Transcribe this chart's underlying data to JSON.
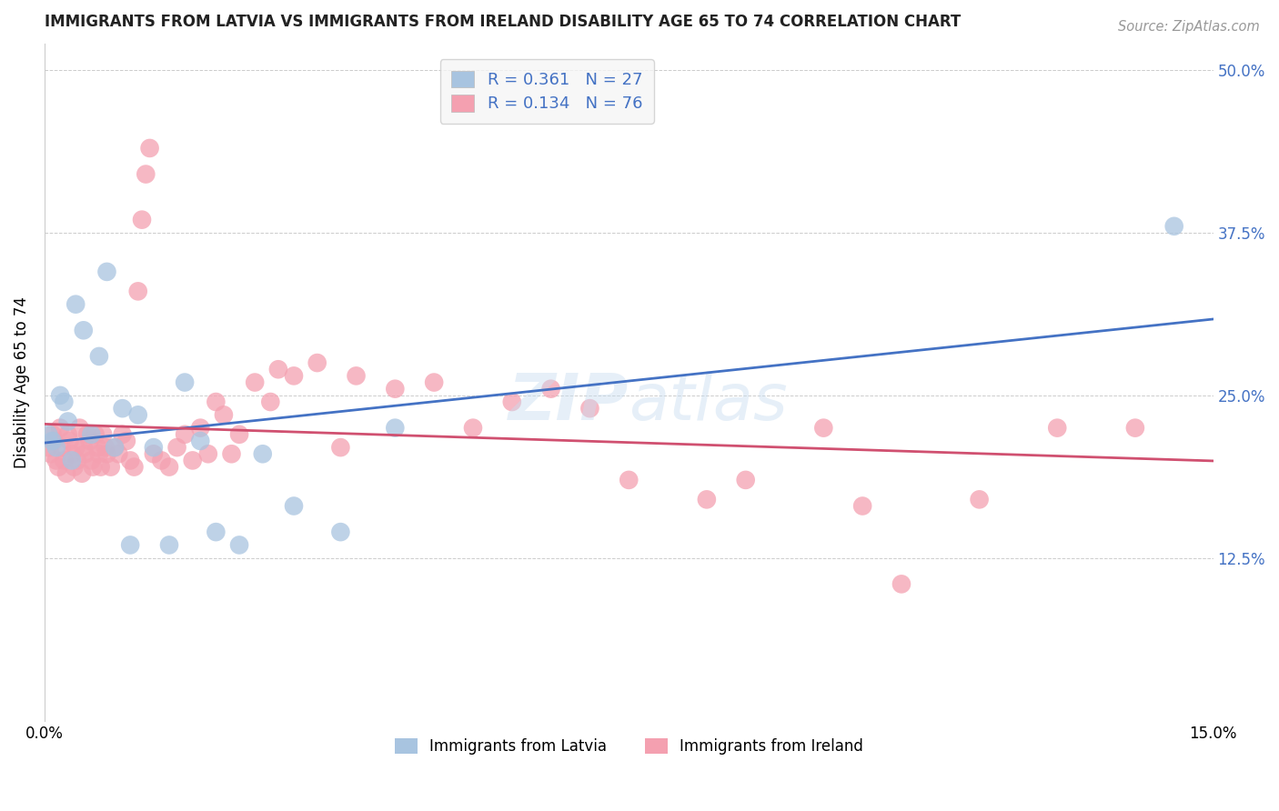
{
  "title": "IMMIGRANTS FROM LATVIA VS IMMIGRANTS FROM IRELAND DISABILITY AGE 65 TO 74 CORRELATION CHART",
  "source": "Source: ZipAtlas.com",
  "ylabel": "Disability Age 65 to 74",
  "xlim": [
    0.0,
    15.0
  ],
  "ylim": [
    0.0,
    52.0
  ],
  "legend_labels": [
    "Immigrants from Latvia",
    "Immigrants from Ireland"
  ],
  "legend_r_latvia": "0.361",
  "legend_n_latvia": "27",
  "legend_r_ireland": "0.134",
  "legend_n_ireland": "76",
  "color_latvia": "#a8c4e0",
  "color_ireland": "#f4a0b0",
  "line_color_latvia": "#4472c4",
  "line_color_ireland": "#d05070",
  "background_color": "#ffffff",
  "grid_color": "#cccccc",
  "title_color": "#222222",
  "source_color": "#999999",
  "yticks": [
    12.5,
    25.0,
    37.5,
    50.0
  ],
  "xticks": [
    0.0,
    15.0
  ],
  "latvia_x": [
    0.05,
    0.1,
    0.15,
    0.2,
    0.25,
    0.3,
    0.35,
    0.4,
    0.5,
    0.6,
    0.7,
    0.8,
    0.9,
    1.0,
    1.1,
    1.2,
    1.4,
    1.6,
    1.8,
    2.0,
    2.2,
    2.5,
    2.8,
    3.2,
    3.8,
    4.5,
    14.5
  ],
  "latvia_y": [
    22.0,
    21.5,
    21.0,
    25.0,
    24.5,
    23.0,
    20.0,
    32.0,
    30.0,
    22.0,
    28.0,
    34.5,
    21.0,
    24.0,
    13.5,
    23.5,
    21.0,
    13.5,
    26.0,
    21.5,
    14.5,
    13.5,
    20.5,
    16.5,
    14.5,
    22.5,
    38.0
  ],
  "ireland_x": [
    0.05,
    0.08,
    0.1,
    0.12,
    0.15,
    0.18,
    0.2,
    0.22,
    0.25,
    0.28,
    0.3,
    0.32,
    0.35,
    0.38,
    0.4,
    0.42,
    0.45,
    0.48,
    0.5,
    0.52,
    0.55,
    0.58,
    0.6,
    0.62,
    0.65,
    0.68,
    0.7,
    0.72,
    0.75,
    0.78,
    0.8,
    0.85,
    0.9,
    0.95,
    1.0,
    1.05,
    1.1,
    1.15,
    1.2,
    1.25,
    1.3,
    1.35,
    1.4,
    1.5,
    1.6,
    1.7,
    1.8,
    1.9,
    2.0,
    2.1,
    2.2,
    2.3,
    2.4,
    2.5,
    2.7,
    2.9,
    3.0,
    3.2,
    3.5,
    3.8,
    4.0,
    4.5,
    5.0,
    5.5,
    6.0,
    6.5,
    7.0,
    7.5,
    8.5,
    9.0,
    10.0,
    10.5,
    11.0,
    12.0,
    13.0,
    14.0
  ],
  "ireland_y": [
    21.0,
    20.5,
    22.0,
    21.5,
    20.0,
    19.5,
    22.5,
    21.0,
    20.0,
    19.0,
    22.0,
    21.5,
    20.5,
    19.5,
    21.0,
    20.0,
    22.5,
    19.0,
    21.0,
    20.5,
    22.0,
    21.5,
    20.0,
    19.5,
    22.0,
    21.0,
    20.5,
    19.5,
    22.0,
    21.0,
    20.5,
    19.5,
    21.0,
    20.5,
    22.0,
    21.5,
    20.0,
    19.5,
    33.0,
    38.5,
    42.0,
    44.0,
    20.5,
    20.0,
    19.5,
    21.0,
    22.0,
    20.0,
    22.5,
    20.5,
    24.5,
    23.5,
    20.5,
    22.0,
    26.0,
    24.5,
    27.0,
    26.5,
    27.5,
    21.0,
    26.5,
    25.5,
    26.0,
    22.5,
    24.5,
    25.5,
    24.0,
    18.5,
    17.0,
    18.5,
    22.5,
    16.5,
    10.5,
    17.0,
    22.5,
    22.5
  ]
}
